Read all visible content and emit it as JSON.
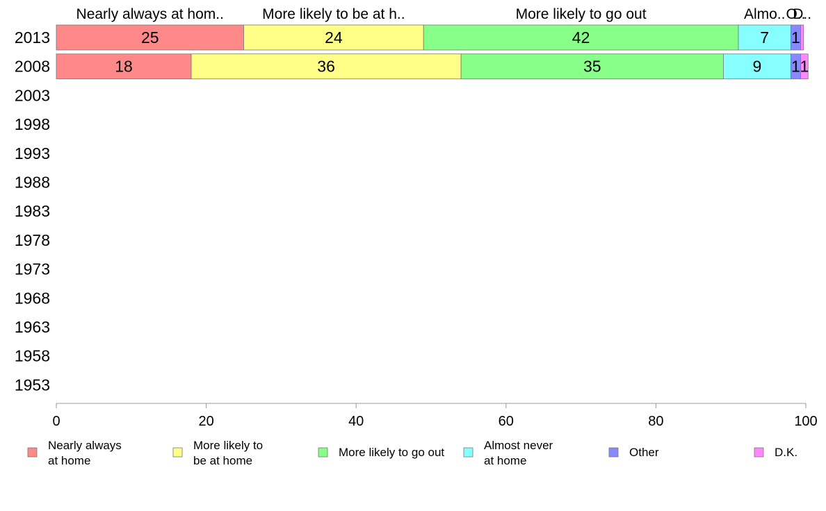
{
  "chart_data": {
    "type": "bar",
    "orientation": "horizontal",
    "stacked": true,
    "categories": [
      "2013",
      "2008",
      "2003",
      "1998",
      "1993",
      "1988",
      "1983",
      "1978",
      "1973",
      "1968",
      "1963",
      "1958",
      "1953"
    ],
    "series": [
      {
        "name": "Nearly always at home",
        "header": "Nearly always at hom..",
        "legend_lines": [
          "Nearly always",
          "at home"
        ],
        "color": "#ff8888",
        "values": [
          25,
          18,
          null,
          null,
          null,
          null,
          null,
          null,
          null,
          null,
          null,
          null,
          null
        ],
        "labels": [
          "25",
          "18"
        ]
      },
      {
        "name": "More likely to be at home",
        "header": "More likely to be at h..",
        "legend_lines": [
          "More likely to",
          "be at home"
        ],
        "color": "#ffff88",
        "values": [
          24,
          36,
          null,
          null,
          null,
          null,
          null,
          null,
          null,
          null,
          null,
          null,
          null
        ],
        "labels": [
          "24",
          "36"
        ]
      },
      {
        "name": "More likely to go out",
        "header": "More likely to go out",
        "legend_lines": [
          "More likely to go out"
        ],
        "color": "#88ff88",
        "values": [
          42,
          35,
          null,
          null,
          null,
          null,
          null,
          null,
          null,
          null,
          null,
          null,
          null
        ],
        "labels": [
          "42",
          "35"
        ]
      },
      {
        "name": "Almost never at home",
        "header": "Almo..",
        "legend_lines": [
          "Almost never",
          "at home"
        ],
        "color": "#88ffff",
        "values": [
          7,
          9,
          null,
          null,
          null,
          null,
          null,
          null,
          null,
          null,
          null,
          null,
          null
        ],
        "labels": [
          "7",
          "9"
        ]
      },
      {
        "name": "Other",
        "header": "O..",
        "legend_lines": [
          "Other"
        ],
        "color": "#8888ff",
        "values": [
          1.3,
          1.3,
          null,
          null,
          null,
          null,
          null,
          null,
          null,
          null,
          null,
          null,
          null
        ],
        "labels": [
          "1",
          "1"
        ]
      },
      {
        "name": "D.K.",
        "header": "D..",
        "legend_lines": [
          "D.K."
        ],
        "color": "#ff88ff",
        "values": [
          0.4,
          1,
          null,
          null,
          null,
          null,
          null,
          null,
          null,
          null,
          null,
          null,
          null
        ],
        "labels": [
          "",
          "1"
        ]
      }
    ],
    "xlim": [
      0,
      100
    ],
    "xticks": [
      "0",
      "20",
      "40",
      "60",
      "80",
      "100"
    ],
    "grid": false,
    "legend_position": "bottom"
  }
}
